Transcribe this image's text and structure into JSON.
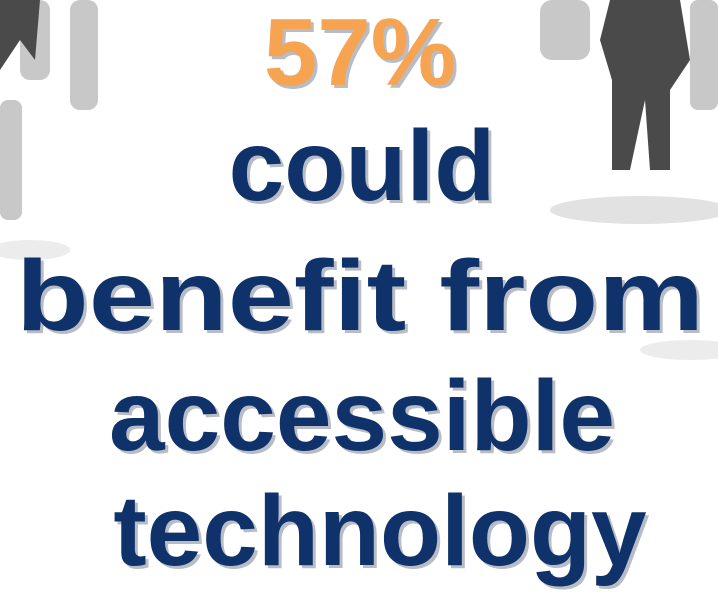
{
  "stat": "57%",
  "lines": [
    "could",
    "benefit from",
    "accessible",
    "technology"
  ]
}
